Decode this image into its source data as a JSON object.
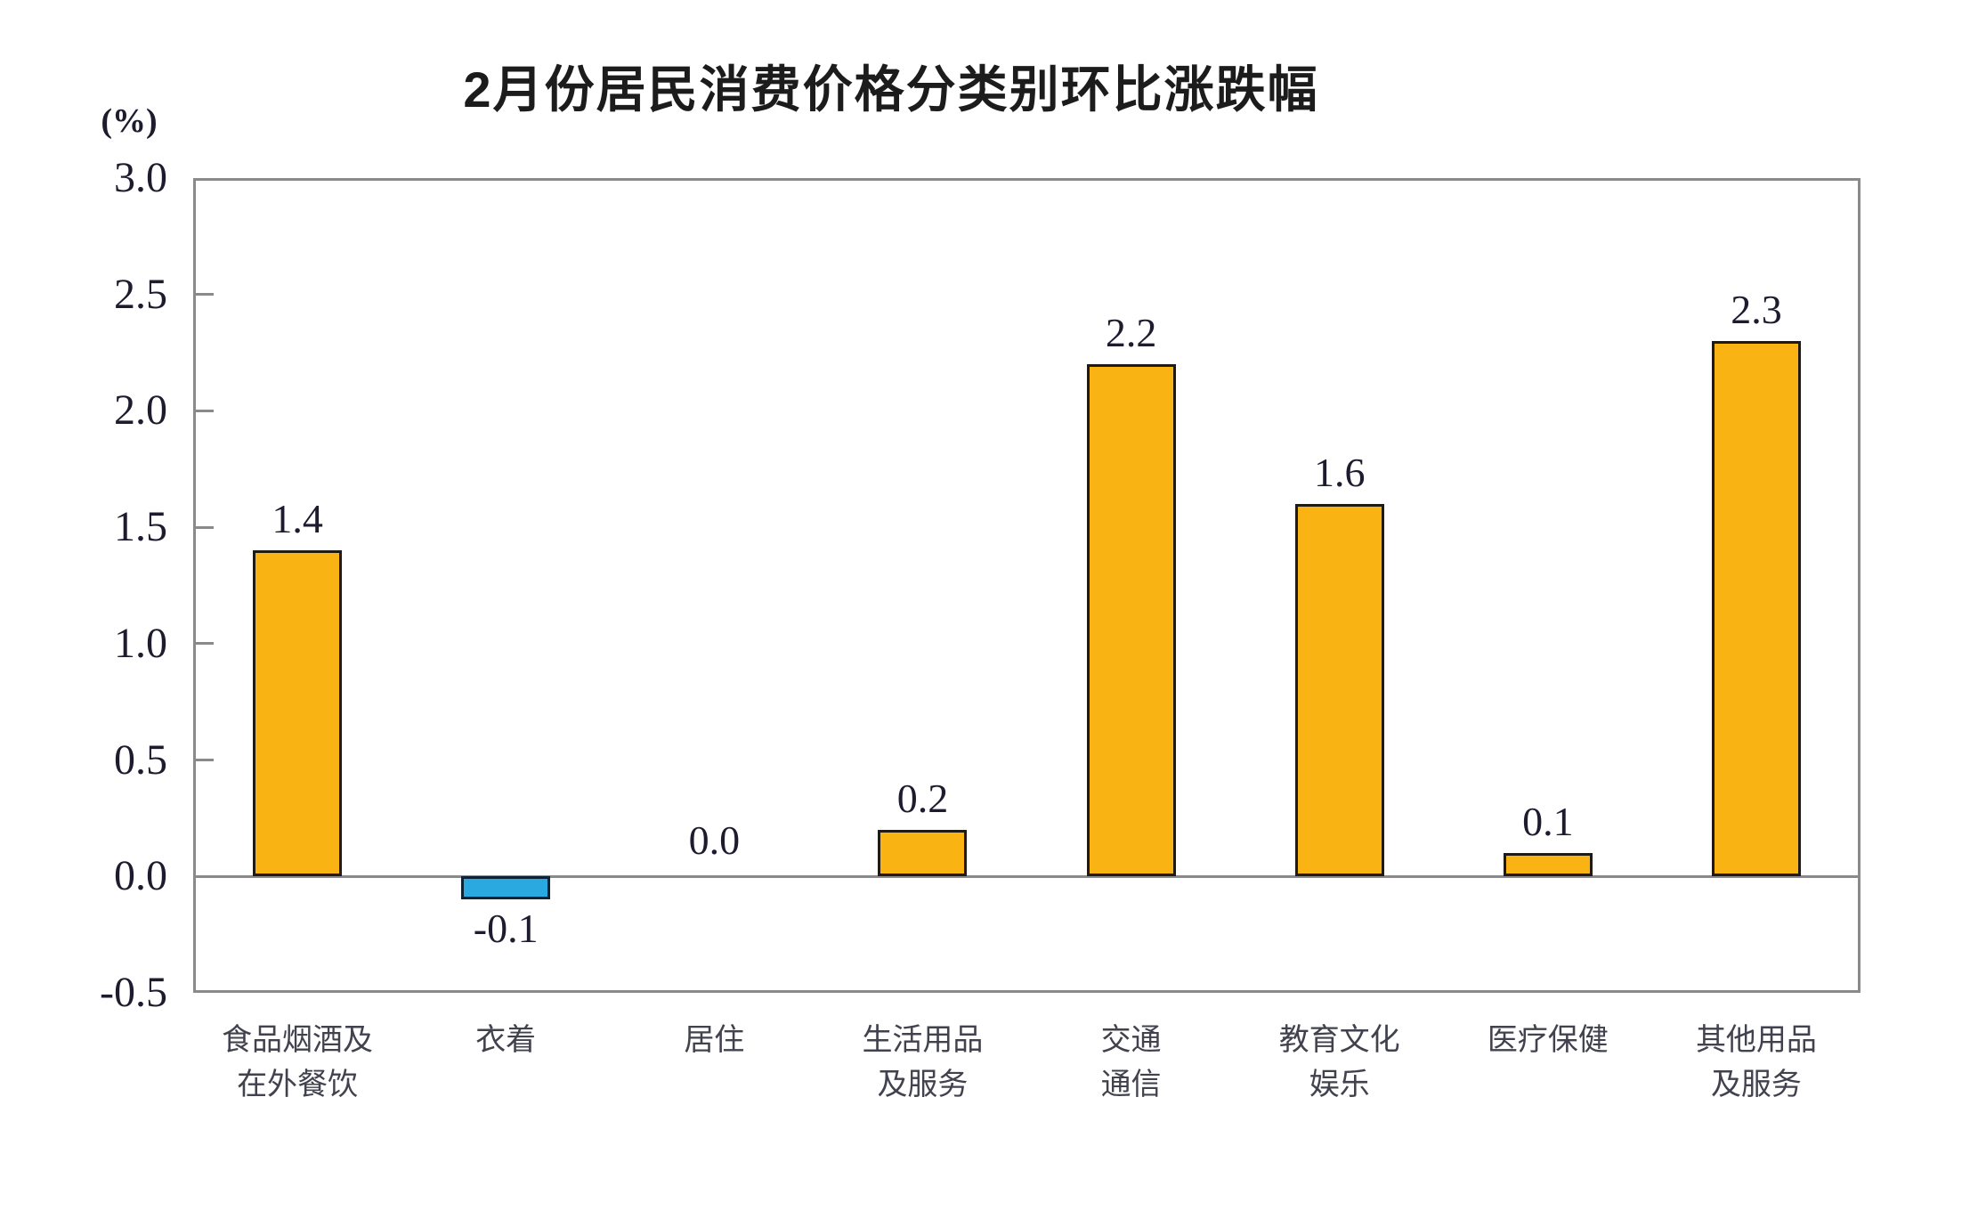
{
  "chart_data": {
    "type": "bar",
    "title": "2月份居民消费价格分类别环比涨跌幅",
    "unit_label": "(%)",
    "categories": [
      "食品烟酒及\n在外餐饮",
      "衣着",
      "居住",
      "生活用品\n及服务",
      "交通\n通信",
      "教育文化\n娱乐",
      "医疗保健",
      "其他用品\n及服务"
    ],
    "values": [
      1.4,
      -0.1,
      0.0,
      0.2,
      2.2,
      1.6,
      0.1,
      2.3
    ],
    "value_labels": [
      "1.4",
      "-0.1",
      "0.0",
      "0.2",
      "2.2",
      "1.6",
      "0.1",
      "2.3"
    ],
    "xlabel": "",
    "ylabel": "(%)",
    "ylim": [
      -0.5,
      3.0
    ],
    "ytick_step": 0.5,
    "ytick_labels": [
      "3.0",
      "2.5",
      "2.0",
      "1.5",
      "1.0",
      "0.5",
      "0.0",
      "-0.5"
    ],
    "grid": false,
    "legend_position": "none",
    "colors": {
      "positive_fill": "#F9B414",
      "negative_fill": "#29A9E0",
      "positive_border": "#1f1a14",
      "negative_border": "#0e2236",
      "axis_frame": "#8a8a8a",
      "zero_line": "#8a8a8a",
      "title_text": "#1c1c1c",
      "tick_text": "#1c1c2e",
      "value_text": "#1c1c2e",
      "category_text": "#42424f"
    }
  }
}
